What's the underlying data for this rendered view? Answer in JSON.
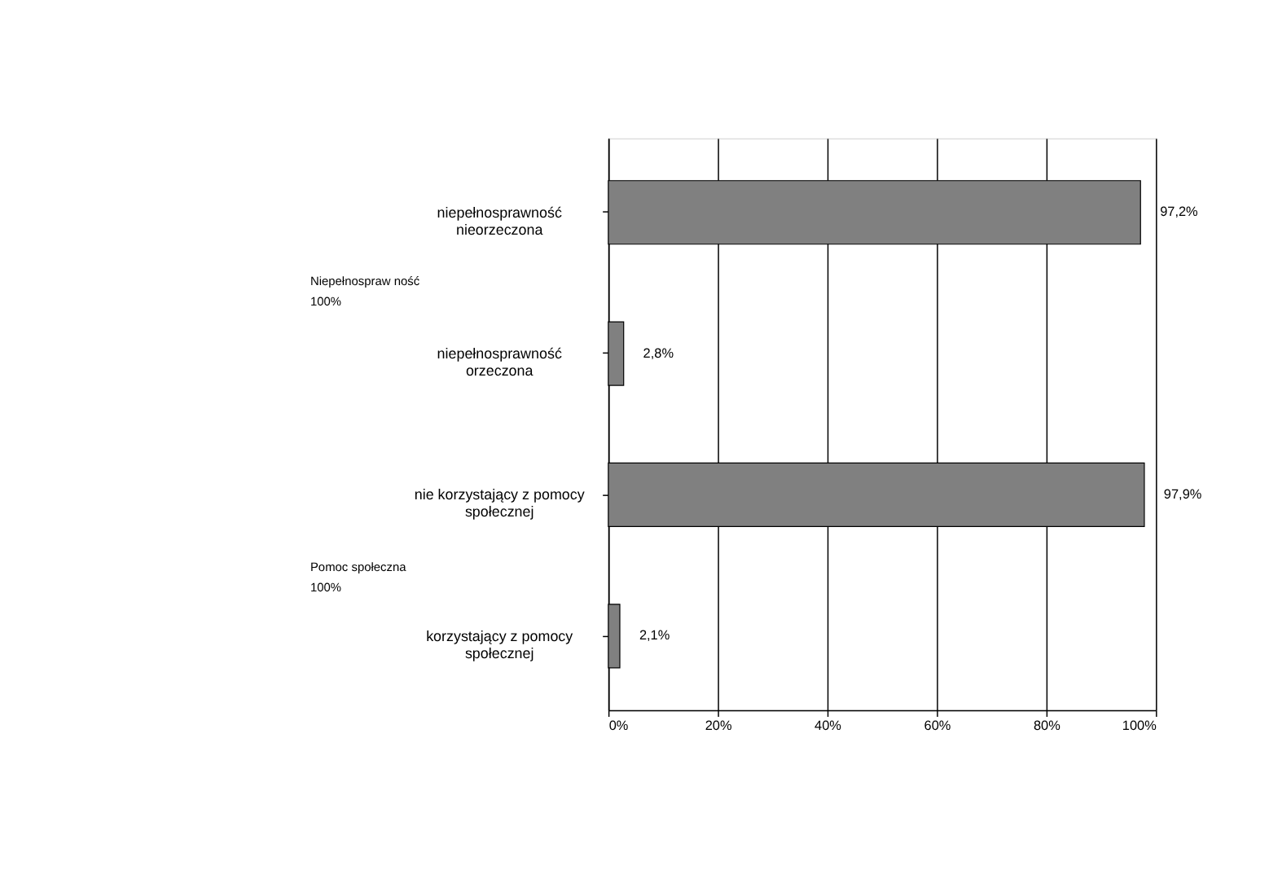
{
  "chart_data": {
    "type": "bar",
    "orientation": "horizontal",
    "categories": [
      "niepełnosprawność\nnieorzeczona",
      "niepełnosprawność\norzeczona",
      "nie korzystający z pomocy\nspołecznej",
      "korzystający z pomocy\nspołecznej"
    ],
    "values": [
      97.2,
      2.8,
      97.9,
      2.1
    ],
    "value_labels": [
      "97,2%",
      "2,8%",
      "97,9%",
      "2,1%"
    ],
    "color": "#808080",
    "xlim": [
      0,
      100
    ],
    "xticks": [
      {
        "value": 0,
        "label": "0%"
      },
      {
        "value": 20,
        "label": "20%"
      },
      {
        "value": 40,
        "label": "40%"
      },
      {
        "value": 60,
        "label": "60%"
      },
      {
        "value": 80,
        "label": "80%"
      },
      {
        "value": 100,
        "label": "100%"
      }
    ],
    "grid": "x",
    "annotations": [
      "Niepełnospraw ność\n100%",
      "Pomoc społeczna\n100%"
    ]
  }
}
